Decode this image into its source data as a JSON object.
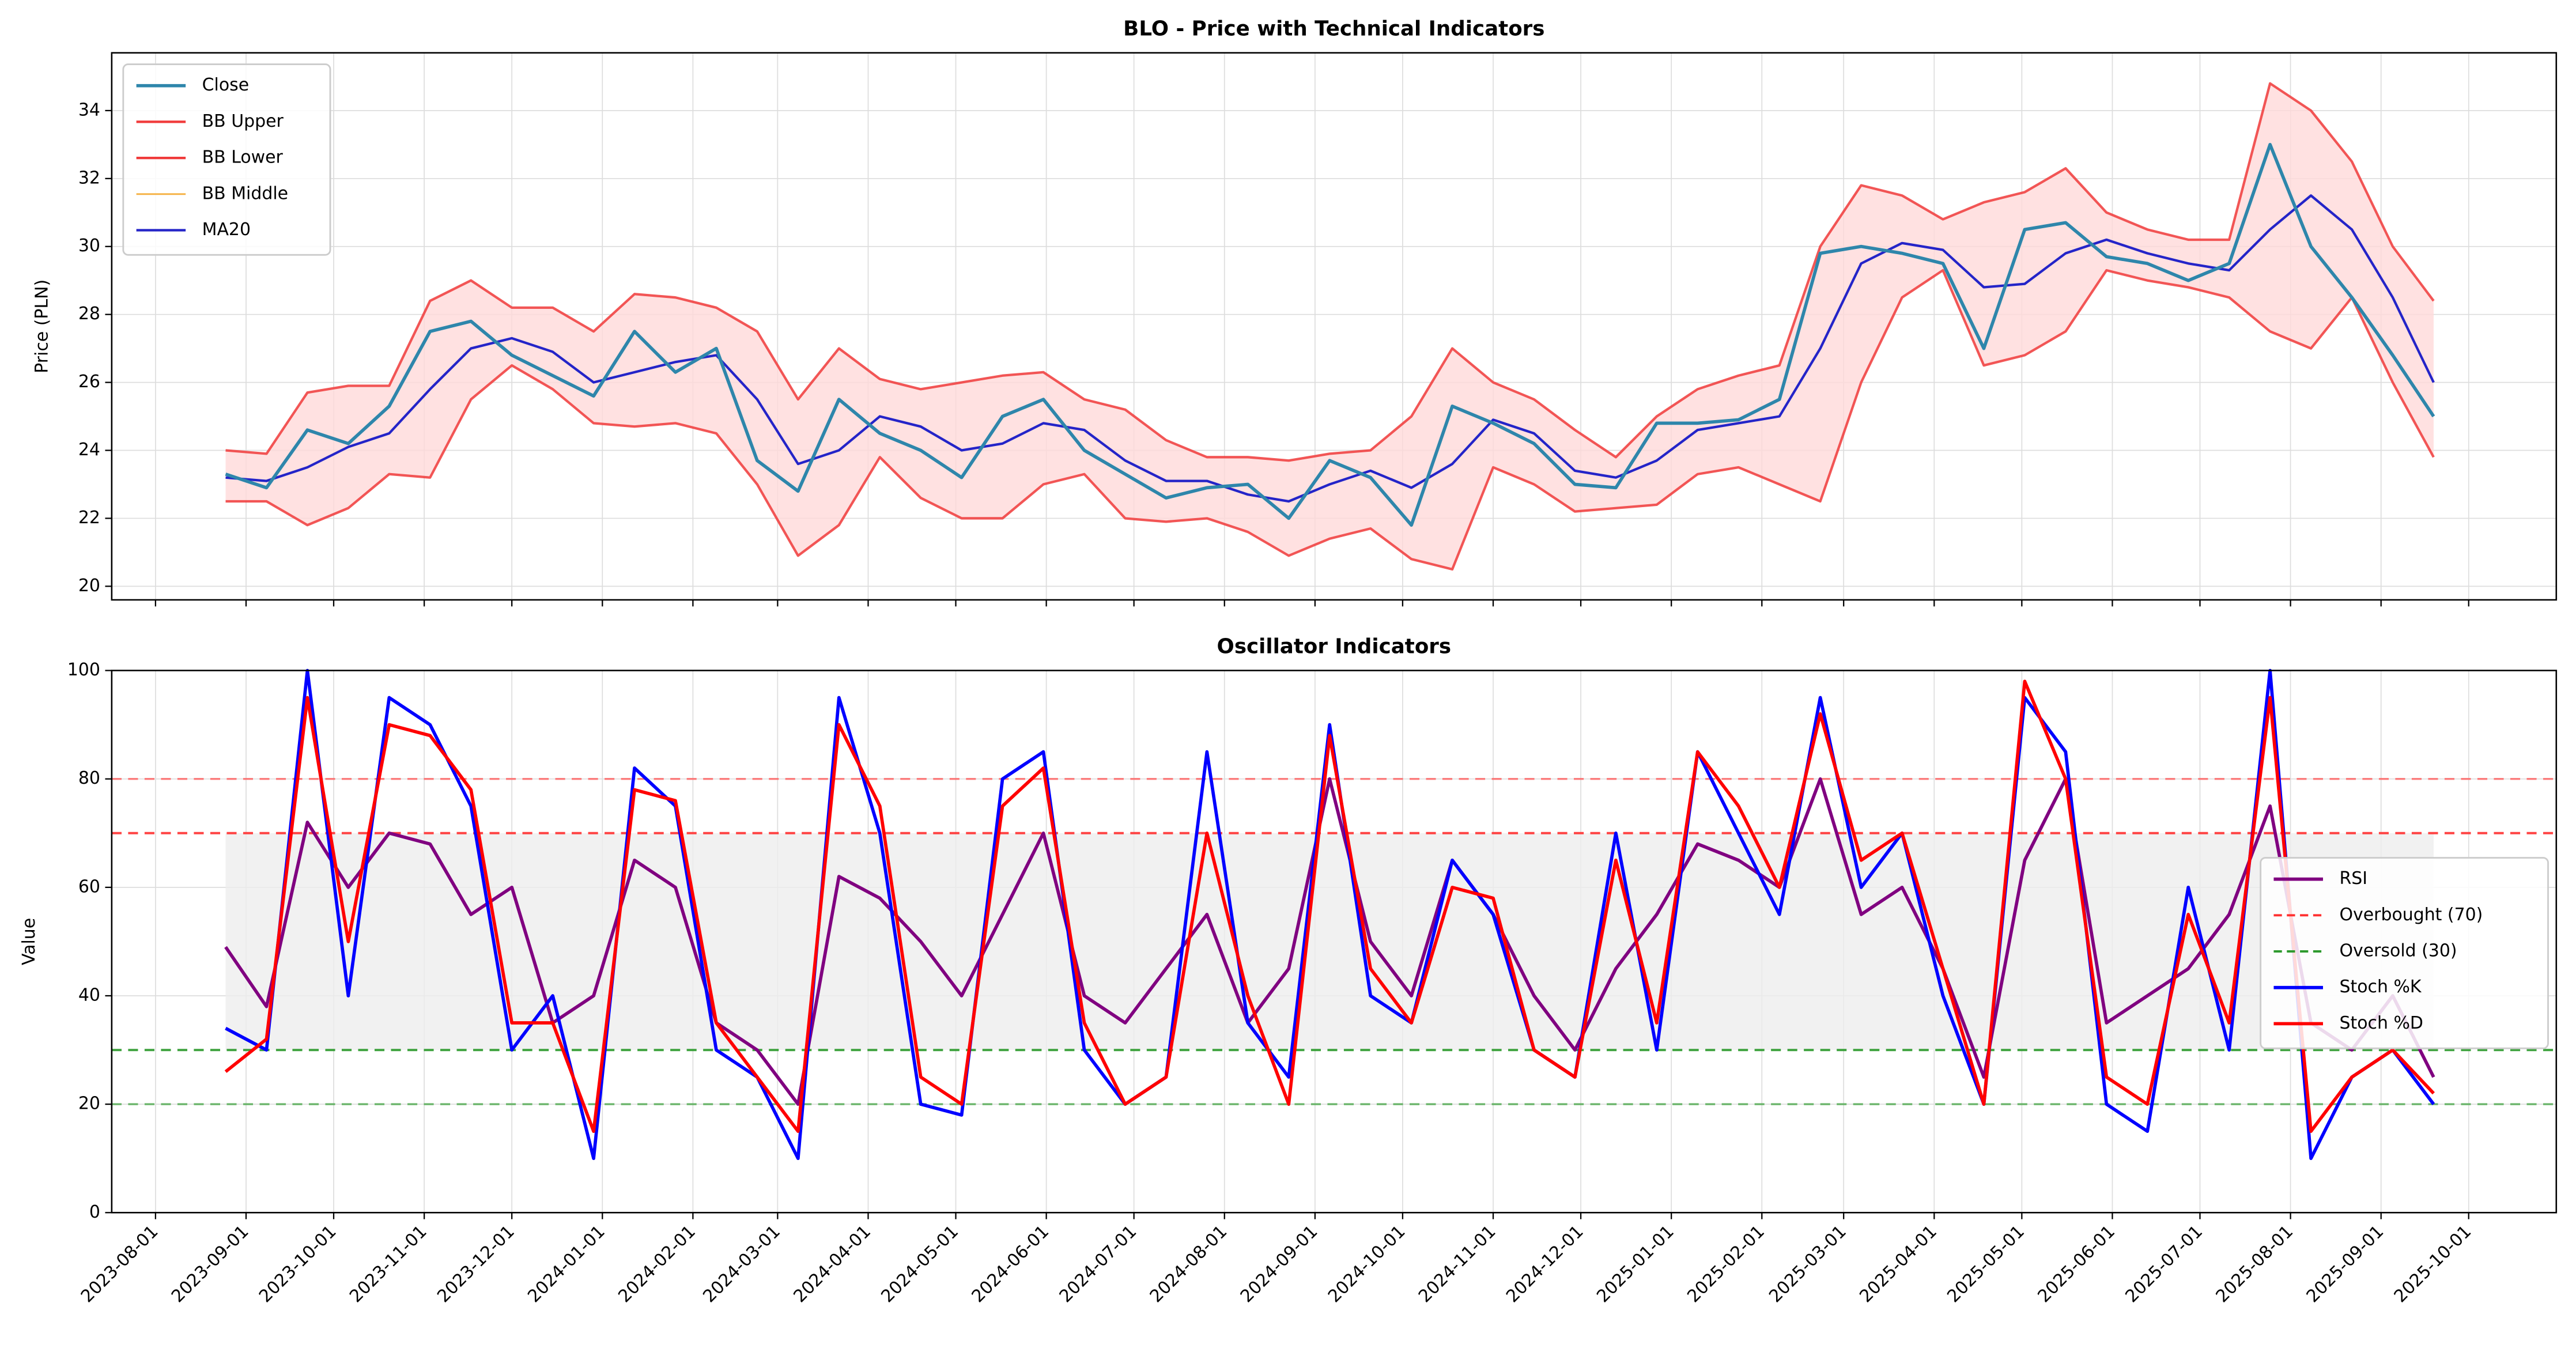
{
  "chart_data": [
    {
      "type": "line",
      "title": "BLO - Price with Technical Indicators",
      "ylabel": "Price (PLN)",
      "x": [
        "2023-08-25",
        "2023-09-08",
        "2023-09-22",
        "2023-10-06",
        "2023-10-20",
        "2023-11-03",
        "2023-11-17",
        "2023-12-01",
        "2023-12-15",
        "2023-12-29",
        "2024-01-12",
        "2024-01-26",
        "2024-02-09",
        "2024-02-23",
        "2024-03-08",
        "2024-03-22",
        "2024-04-05",
        "2024-04-19",
        "2024-05-03",
        "2024-05-17",
        "2024-05-31",
        "2024-06-14",
        "2024-06-28",
        "2024-07-12",
        "2024-07-26",
        "2024-08-09",
        "2024-08-23",
        "2024-09-06",
        "2024-09-20",
        "2024-10-04",
        "2024-10-18",
        "2024-11-01",
        "2024-11-15",
        "2024-11-29",
        "2024-12-13",
        "2024-12-27",
        "2025-01-10",
        "2025-01-24",
        "2025-02-07",
        "2025-02-21",
        "2025-03-07",
        "2025-03-21",
        "2025-04-04",
        "2025-04-18",
        "2025-05-02",
        "2025-05-16",
        "2025-05-30",
        "2025-06-13",
        "2025-06-27",
        "2025-07-11",
        "2025-07-25",
        "2025-08-08",
        "2025-08-22",
        "2025-09-05",
        "2025-09-19"
      ],
      "xlim": [
        "2023-07-17",
        "2025-10-31"
      ],
      "ylim": [
        19.6,
        35.7
      ],
      "yticks": [
        20,
        22,
        24,
        26,
        28,
        30,
        32,
        34
      ],
      "grid": true,
      "legend": "upper left",
      "band_color": "#ffd9d9",
      "series": [
        {
          "name": "Close",
          "color": "#2e86ab",
          "values": [
            23.3,
            22.9,
            24.6,
            24.2,
            25.3,
            27.5,
            27.8,
            26.8,
            26.2,
            25.6,
            27.5,
            26.3,
            27.0,
            23.7,
            22.8,
            25.5,
            24.5,
            24.0,
            23.2,
            25.0,
            25.5,
            24.0,
            23.3,
            22.6,
            22.9,
            23.0,
            22.0,
            23.7,
            23.2,
            21.8,
            25.3,
            24.8,
            24.2,
            23.0,
            22.9,
            24.8,
            24.8,
            24.9,
            25.5,
            29.8,
            30.0,
            29.8,
            29.5,
            27.0,
            30.5,
            30.7,
            29.7,
            29.5,
            29.0,
            29.5,
            33.0,
            30.0,
            28.5,
            26.8,
            25.0
          ]
        },
        {
          "name": "BB Upper",
          "color": "#f03a3a",
          "values": [
            24.0,
            23.9,
            25.7,
            25.9,
            25.9,
            28.4,
            29.0,
            28.2,
            28.2,
            27.5,
            28.6,
            28.5,
            28.2,
            27.5,
            25.5,
            27.0,
            26.1,
            25.8,
            26.0,
            26.2,
            26.3,
            25.5,
            25.2,
            24.3,
            23.8,
            23.8,
            23.7,
            23.9,
            24.0,
            25.0,
            27.0,
            26.0,
            25.5,
            24.6,
            23.8,
            25.0,
            25.8,
            26.2,
            26.5,
            30.0,
            31.8,
            31.5,
            30.8,
            31.3,
            31.6,
            32.3,
            31.0,
            30.5,
            30.2,
            30.2,
            34.8,
            34.0,
            32.5,
            30.0,
            28.4
          ]
        },
        {
          "name": "BB Lower",
          "color": "#f03a3a",
          "values": [
            22.5,
            22.5,
            21.8,
            22.3,
            23.3,
            23.2,
            25.5,
            26.5,
            25.8,
            24.8,
            24.7,
            24.8,
            24.5,
            23.0,
            20.9,
            21.8,
            23.8,
            22.6,
            22.0,
            22.0,
            23.0,
            23.3,
            22.0,
            21.9,
            22.0,
            21.6,
            20.9,
            21.4,
            21.7,
            20.8,
            20.5,
            23.5,
            23.0,
            22.2,
            22.3,
            22.4,
            23.3,
            23.5,
            23.0,
            22.5,
            26.0,
            28.5,
            29.3,
            26.5,
            26.8,
            27.5,
            29.3,
            29.0,
            28.8,
            28.5,
            27.5,
            27.0,
            28.5,
            26.0,
            23.8
          ]
        },
        {
          "name": "BB Middle",
          "color": "#f5b041",
          "values": [
            23.2,
            23.1,
            23.5,
            24.1,
            24.5,
            25.8,
            27.0,
            27.3,
            26.9,
            26.0,
            26.3,
            26.6,
            26.8,
            25.5,
            23.6,
            24.0,
            25.0,
            24.7,
            24.0,
            24.2,
            24.8,
            24.6,
            23.7,
            23.1,
            23.1,
            22.7,
            22.5,
            23.0,
            23.4,
            22.9,
            23.6,
            24.9,
            24.5,
            23.4,
            23.2,
            23.7,
            24.6,
            24.8,
            25.0,
            27.0,
            29.5,
            30.1,
            29.9,
            28.8,
            28.9,
            29.8,
            30.2,
            29.8,
            29.5,
            29.3,
            30.5,
            31.5,
            30.5,
            28.5,
            26.0
          ]
        },
        {
          "name": "MA20",
          "color": "#2424c8",
          "values": [
            23.2,
            23.1,
            23.5,
            24.1,
            24.5,
            25.8,
            27.0,
            27.3,
            26.9,
            26.0,
            26.3,
            26.6,
            26.8,
            25.5,
            23.6,
            24.0,
            25.0,
            24.7,
            24.0,
            24.2,
            24.8,
            24.6,
            23.7,
            23.1,
            23.1,
            22.7,
            22.5,
            23.0,
            23.4,
            22.9,
            23.6,
            24.9,
            24.5,
            23.4,
            23.2,
            23.7,
            24.6,
            24.8,
            25.0,
            27.0,
            29.5,
            30.1,
            29.9,
            28.8,
            28.9,
            29.8,
            30.2,
            29.8,
            29.5,
            29.3,
            30.5,
            31.5,
            30.5,
            28.5,
            26.0
          ]
        }
      ]
    },
    {
      "type": "line",
      "title": "Oscillator Indicators",
      "ylabel": "Value",
      "x": [
        "2023-08-25",
        "2023-09-08",
        "2023-09-22",
        "2023-10-06",
        "2023-10-20",
        "2023-11-03",
        "2023-11-17",
        "2023-12-01",
        "2023-12-15",
        "2023-12-29",
        "2024-01-12",
        "2024-01-26",
        "2024-02-09",
        "2024-02-23",
        "2024-03-08",
        "2024-03-22",
        "2024-04-05",
        "2024-04-19",
        "2024-05-03",
        "2024-05-17",
        "2024-05-31",
        "2024-06-14",
        "2024-06-28",
        "2024-07-12",
        "2024-07-26",
        "2024-08-09",
        "2024-08-23",
        "2024-09-06",
        "2024-09-20",
        "2024-10-04",
        "2024-10-18",
        "2024-11-01",
        "2024-11-15",
        "2024-11-29",
        "2024-12-13",
        "2024-12-27",
        "2025-01-10",
        "2025-01-24",
        "2025-02-07",
        "2025-02-21",
        "2025-03-07",
        "2025-03-21",
        "2025-04-04",
        "2025-04-18",
        "2025-05-02",
        "2025-05-16",
        "2025-05-30",
        "2025-06-13",
        "2025-06-27",
        "2025-07-11",
        "2025-07-25",
        "2025-08-08",
        "2025-08-22",
        "2025-09-05",
        "2025-09-19"
      ],
      "xlim": [
        "2023-07-17",
        "2025-10-31"
      ],
      "xticks": [
        "2023-08-01",
        "2023-09-01",
        "2023-10-01",
        "2023-11-01",
        "2023-12-01",
        "2024-01-01",
        "2024-02-01",
        "2024-03-01",
        "2024-04-01",
        "2024-05-01",
        "2024-06-01",
        "2024-07-01",
        "2024-08-01",
        "2024-09-01",
        "2024-10-01",
        "2024-11-01",
        "2024-12-01",
        "2025-01-01",
        "2025-02-01",
        "2025-03-01",
        "2025-04-01",
        "2025-05-01",
        "2025-06-01",
        "2025-07-01",
        "2025-08-01",
        "2025-09-01",
        "2025-10-01"
      ],
      "ylim": [
        0,
        100
      ],
      "yticks": [
        0,
        20,
        40,
        60,
        80,
        100
      ],
      "grid": true,
      "legend": "center right",
      "zone_color": "#eeeeee",
      "reference_lines": [
        {
          "name": "Overbought (70)",
          "value": 70,
          "color": "#ff3030"
        },
        {
          "name": "Oversold (30)",
          "value": 30,
          "color": "#2e9a2e"
        }
      ],
      "guide_lines": [
        {
          "value": 80,
          "color": "#ff6060"
        },
        {
          "value": 20,
          "color": "#50aa50"
        }
      ],
      "series": [
        {
          "name": "RSI",
          "color": "#800080",
          "values": [
            49,
            38,
            72,
            60,
            70,
            68,
            55,
            60,
            35,
            40,
            65,
            60,
            35,
            30,
            20,
            62,
            58,
            50,
            40,
            55,
            70,
            40,
            35,
            45,
            55,
            35,
            45,
            80,
            50,
            40,
            65,
            55,
            40,
            30,
            45,
            55,
            68,
            65,
            60,
            80,
            55,
            60,
            45,
            25,
            65,
            80,
            35,
            40,
            45,
            55,
            75,
            35,
            30,
            40,
            25
          ]
        },
        {
          "name": "Stoch %K",
          "color": "#0000ff",
          "values": [
            34,
            30,
            100,
            40,
            95,
            90,
            75,
            30,
            40,
            10,
            82,
            75,
            30,
            25,
            10,
            95,
            70,
            20,
            18,
            80,
            85,
            30,
            20,
            25,
            85,
            35,
            25,
            90,
            40,
            35,
            65,
            55,
            30,
            25,
            70,
            30,
            85,
            70,
            55,
            95,
            60,
            70,
            40,
            20,
            95,
            85,
            20,
            15,
            60,
            30,
            100,
            10,
            25,
            30,
            20
          ]
        },
        {
          "name": "Stoch %D",
          "color": "#ff0000",
          "values": [
            26,
            32,
            95,
            50,
            90,
            88,
            78,
            35,
            35,
            15,
            78,
            76,
            35,
            25,
            15,
            90,
            75,
            25,
            20,
            75,
            82,
            35,
            20,
            25,
            70,
            40,
            20,
            88,
            45,
            35,
            60,
            58,
            30,
            25,
            65,
            35,
            85,
            75,
            60,
            92,
            65,
            70,
            45,
            20,
            98,
            80,
            25,
            20,
            55,
            35,
            95,
            15,
            25,
            30,
            22
          ]
        }
      ]
    }
  ]
}
